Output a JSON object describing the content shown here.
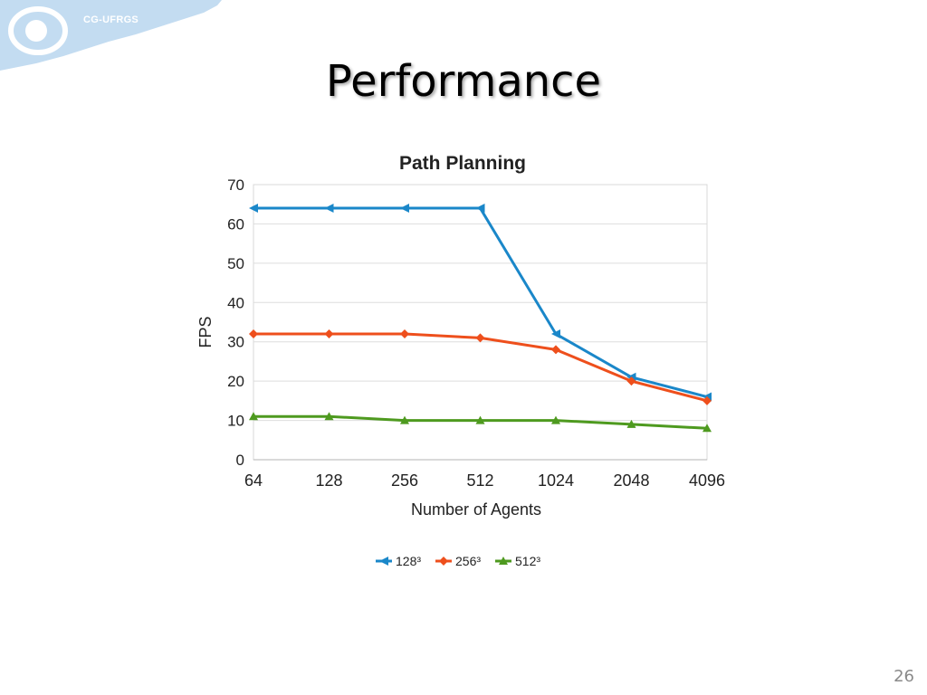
{
  "header": {
    "logo_text": "CG-UFRGS",
    "title": "Performance"
  },
  "slide": {
    "page_number": "26"
  },
  "colors": {
    "series_128": "#1a87c9",
    "series_256": "#ee4f1c",
    "series_512": "#4e9a1f",
    "logo_blue": "#bcd7ee"
  },
  "chart_data": {
    "type": "line",
    "title": "Path Planning",
    "xlabel": "Number of Agents",
    "ylabel": "FPS",
    "categories": [
      "64",
      "128",
      "256",
      "512",
      "1024",
      "2048",
      "4096"
    ],
    "ylim": [
      0,
      70
    ],
    "yticks": [
      0,
      10,
      20,
      30,
      40,
      50,
      60,
      70
    ],
    "grid": true,
    "legend_position": "bottom",
    "series": [
      {
        "name": "128³",
        "values": [
          64,
          64,
          64,
          64,
          32,
          21,
          16
        ],
        "marker": "left-triangle",
        "color": "#1a87c9"
      },
      {
        "name": "256³",
        "values": [
          32,
          32,
          32,
          31,
          28,
          20,
          15
        ],
        "marker": "diamond",
        "color": "#ee4f1c"
      },
      {
        "name": "512³",
        "values": [
          11,
          11,
          10,
          10,
          10,
          9,
          8
        ],
        "marker": "triangle",
        "color": "#4e9a1f"
      }
    ]
  }
}
